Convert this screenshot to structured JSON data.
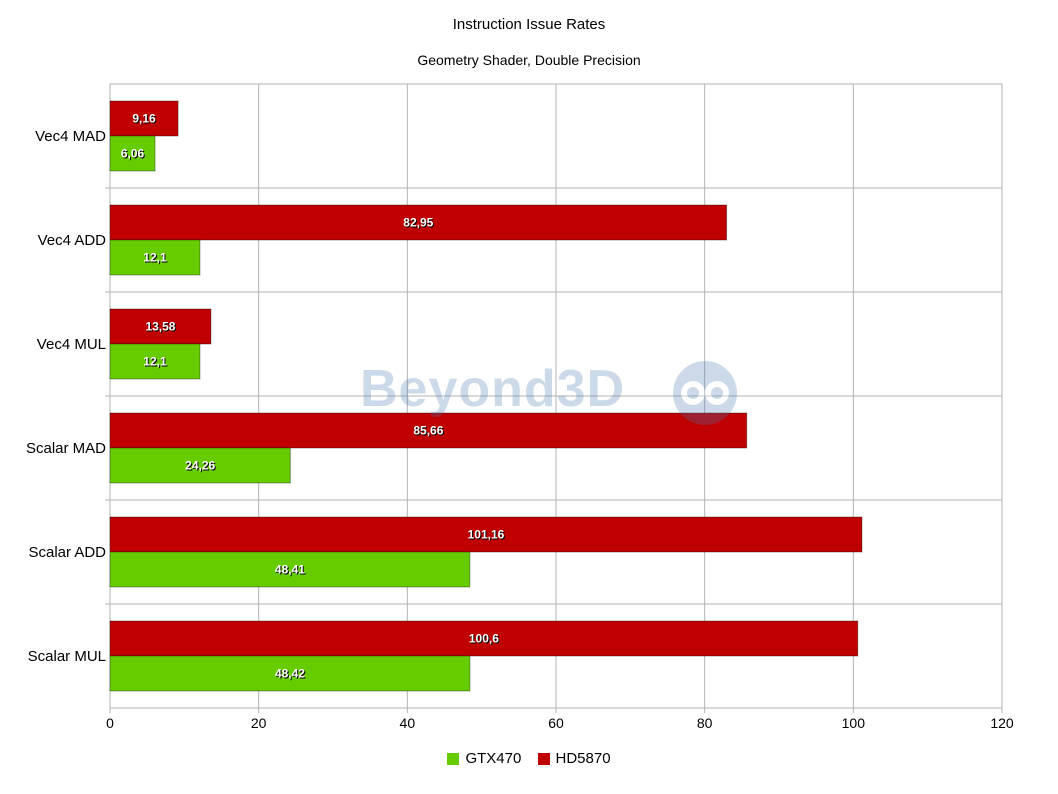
{
  "chart_data": {
    "type": "bar",
    "orientation": "horizontal",
    "title": "Instruction Issue Rates",
    "subtitle": "Geometry Shader, Double Precision",
    "categories": [
      "Vec4 MAD",
      "Vec4 ADD",
      "Vec4 MUL",
      "Scalar MAD",
      "Scalar ADD",
      "Scalar MUL"
    ],
    "series": [
      {
        "name": "HD5870",
        "color": "#c00000",
        "values": [
          9.16,
          82.95,
          13.58,
          85.66,
          101.16,
          100.6
        ],
        "labels": [
          "9,16",
          "82,95",
          "13,58",
          "85,66",
          "101,16",
          "100,6"
        ]
      },
      {
        "name": "GTX470",
        "color": "#66cc00",
        "values": [
          6.06,
          12.1,
          12.1,
          24.26,
          48.41,
          48.42
        ],
        "labels": [
          "6,06",
          "12,1",
          "12,1",
          "24,26",
          "48,41",
          "48,42"
        ]
      }
    ],
    "xlim": [
      0,
      120
    ],
    "xticks": [
      0,
      20,
      40,
      60,
      80,
      100,
      120
    ],
    "grid": true,
    "legend": {
      "position": "bottom",
      "order": [
        "GTX470",
        "HD5870"
      ]
    }
  },
  "watermark": {
    "text": "Beyond3D",
    "icon": "infinity-logo-icon"
  }
}
